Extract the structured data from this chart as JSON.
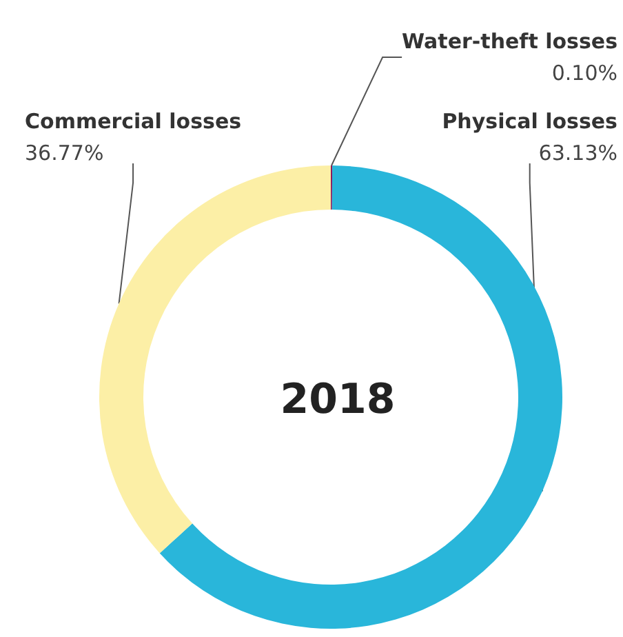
{
  "chart_data": {
    "type": "donut",
    "title": "2018",
    "categories": [
      "Water-theft losses",
      "Physical losses",
      "Commercial losses"
    ],
    "values": [
      0.1,
      63.13,
      36.77
    ],
    "value_labels": [
      "0.10%",
      "63.13%",
      "36.77%"
    ],
    "colors": [
      "#8e1b5c",
      "#29b6da",
      "#fcefa6"
    ],
    "legend": false
  }
}
